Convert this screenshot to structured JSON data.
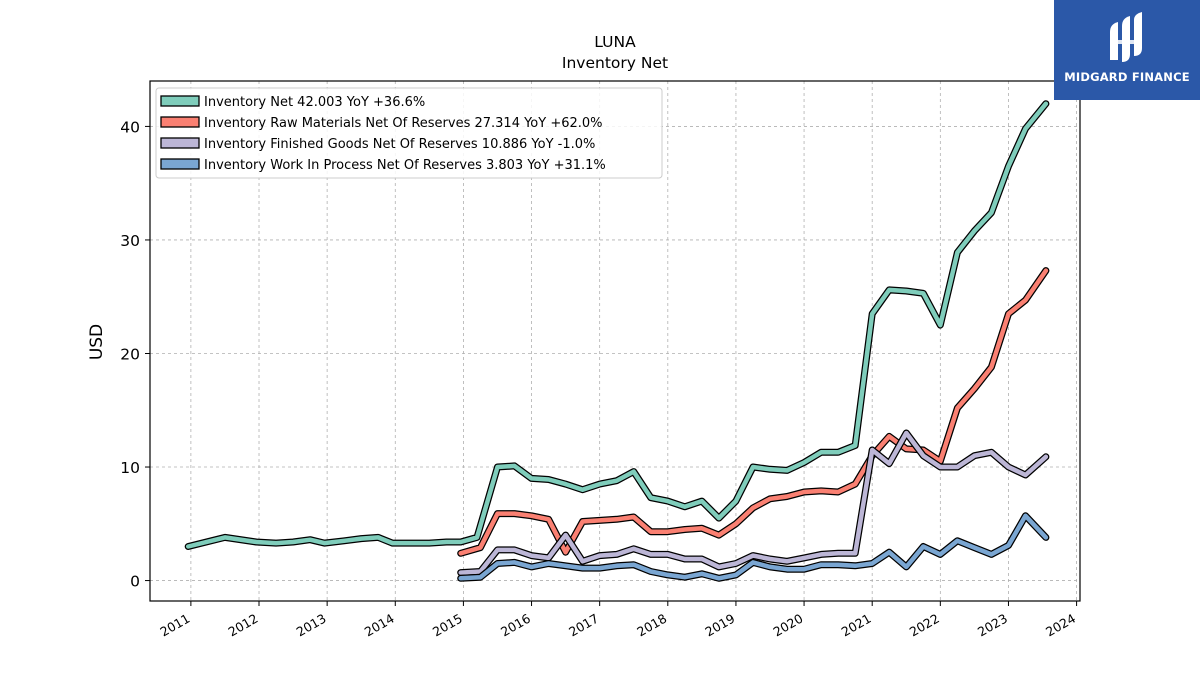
{
  "chart_data": {
    "type": "line",
    "title": "LUNA",
    "subtitle": "Inventory Net",
    "xlabel": "",
    "ylabel": "USD",
    "xlim": [
      2010.4,
      2024.05
    ],
    "ylim": [
      -1.8,
      44
    ],
    "x_ticks": [
      "2011",
      "2012",
      "2013",
      "2014",
      "2015",
      "2016",
      "2017",
      "2018",
      "2019",
      "2020",
      "2021",
      "2022",
      "2023",
      "2024"
    ],
    "y_ticks": [
      "0",
      "10",
      "20",
      "30",
      "40"
    ],
    "grid": true,
    "legend_position": "top-left",
    "series": [
      {
        "name": "Inventory Net",
        "legend_label": "Inventory Net  42.003 YoY +36.6%",
        "color": "#7fcdbb",
        "points": [
          [
            2010.96,
            3.0
          ],
          [
            2011.5,
            3.8
          ],
          [
            2011.96,
            3.4
          ],
          [
            2012.25,
            3.3
          ],
          [
            2012.5,
            3.4
          ],
          [
            2012.75,
            3.6
          ],
          [
            2012.96,
            3.3
          ],
          [
            2013.25,
            3.5
          ],
          [
            2013.5,
            3.7
          ],
          [
            2013.75,
            3.8
          ],
          [
            2013.96,
            3.3
          ],
          [
            2014.25,
            3.3
          ],
          [
            2014.5,
            3.3
          ],
          [
            2014.75,
            3.4
          ],
          [
            2014.96,
            3.4
          ],
          [
            2015.2,
            3.8
          ],
          [
            2015.5,
            10.0
          ],
          [
            2015.75,
            10.1
          ],
          [
            2016.0,
            9.0
          ],
          [
            2016.25,
            8.9
          ],
          [
            2016.5,
            8.5
          ],
          [
            2016.75,
            8.0
          ],
          [
            2017.0,
            8.5
          ],
          [
            2017.25,
            8.8
          ],
          [
            2017.5,
            9.6
          ],
          [
            2017.75,
            7.3
          ],
          [
            2018.0,
            7.0
          ],
          [
            2018.25,
            6.5
          ],
          [
            2018.5,
            7.0
          ],
          [
            2018.75,
            5.5
          ],
          [
            2019.0,
            7.0
          ],
          [
            2019.25,
            10.0
          ],
          [
            2019.5,
            9.8
          ],
          [
            2019.75,
            9.7
          ],
          [
            2020.0,
            10.4
          ],
          [
            2020.25,
            11.3
          ],
          [
            2020.5,
            11.3
          ],
          [
            2020.75,
            11.9
          ],
          [
            2021.0,
            23.5
          ],
          [
            2021.25,
            25.6
          ],
          [
            2021.5,
            25.5
          ],
          [
            2021.75,
            25.3
          ],
          [
            2022.0,
            22.5
          ],
          [
            2022.25,
            28.9
          ],
          [
            2022.5,
            30.8
          ],
          [
            2022.75,
            32.4
          ],
          [
            2023.0,
            36.5
          ],
          [
            2023.25,
            39.8
          ],
          [
            2023.55,
            42.0
          ]
        ]
      },
      {
        "name": "Inventory Raw Materials Net Of Reserves",
        "legend_label": "Inventory Raw Materials Net Of Reserves  27.314 YoY +62.0%",
        "color": "#fa8072",
        "points": [
          [
            2014.96,
            2.4
          ],
          [
            2015.25,
            2.9
          ],
          [
            2015.5,
            5.9
          ],
          [
            2015.75,
            5.9
          ],
          [
            2016.0,
            5.7
          ],
          [
            2016.25,
            5.4
          ],
          [
            2016.5,
            2.5
          ],
          [
            2016.75,
            5.2
          ],
          [
            2017.0,
            5.3
          ],
          [
            2017.25,
            5.4
          ],
          [
            2017.5,
            5.6
          ],
          [
            2017.75,
            4.3
          ],
          [
            2018.0,
            4.3
          ],
          [
            2018.25,
            4.5
          ],
          [
            2018.5,
            4.6
          ],
          [
            2018.75,
            4.0
          ],
          [
            2019.0,
            5.0
          ],
          [
            2019.25,
            6.4
          ],
          [
            2019.5,
            7.2
          ],
          [
            2019.75,
            7.4
          ],
          [
            2020.0,
            7.8
          ],
          [
            2020.25,
            7.9
          ],
          [
            2020.5,
            7.8
          ],
          [
            2020.75,
            8.5
          ],
          [
            2021.0,
            11.0
          ],
          [
            2021.25,
            12.7
          ],
          [
            2021.5,
            11.6
          ],
          [
            2021.75,
            11.5
          ],
          [
            2022.0,
            10.5
          ],
          [
            2022.25,
            15.2
          ],
          [
            2022.5,
            16.9
          ],
          [
            2022.75,
            18.8
          ],
          [
            2023.0,
            23.5
          ],
          [
            2023.25,
            24.7
          ],
          [
            2023.55,
            27.3
          ]
        ]
      },
      {
        "name": "Inventory Finished Goods Net Of Reserves",
        "legend_label": "Inventory Finished Goods Net Of Reserves  10.886 YoY -1.0%",
        "color": "#bcb6d6",
        "points": [
          [
            2014.96,
            0.7
          ],
          [
            2015.25,
            0.8
          ],
          [
            2015.5,
            2.7
          ],
          [
            2015.75,
            2.7
          ],
          [
            2016.0,
            2.2
          ],
          [
            2016.25,
            2.0
          ],
          [
            2016.5,
            4.0
          ],
          [
            2016.75,
            1.7
          ],
          [
            2017.0,
            2.2
          ],
          [
            2017.25,
            2.3
          ],
          [
            2017.5,
            2.8
          ],
          [
            2017.75,
            2.3
          ],
          [
            2018.0,
            2.3
          ],
          [
            2018.25,
            1.9
          ],
          [
            2018.5,
            1.9
          ],
          [
            2018.75,
            1.2
          ],
          [
            2019.0,
            1.5
          ],
          [
            2019.25,
            2.2
          ],
          [
            2019.5,
            1.9
          ],
          [
            2019.75,
            1.7
          ],
          [
            2020.0,
            2.0
          ],
          [
            2020.25,
            2.3
          ],
          [
            2020.5,
            2.4
          ],
          [
            2020.75,
            2.4
          ],
          [
            2021.0,
            11.5
          ],
          [
            2021.25,
            10.3
          ],
          [
            2021.5,
            13.0
          ],
          [
            2021.75,
            11.0
          ],
          [
            2022.0,
            10.0
          ],
          [
            2022.25,
            10.0
          ],
          [
            2022.5,
            11.0
          ],
          [
            2022.75,
            11.3
          ],
          [
            2023.0,
            10.0
          ],
          [
            2023.25,
            9.3
          ],
          [
            2023.55,
            10.9
          ]
        ]
      },
      {
        "name": "Inventory Work In Process Net Of Reserves",
        "legend_label": "Inventory Work In Process Net Of Reserves  3.803 YoY +31.1%",
        "color": "#7aa6d2",
        "points": [
          [
            2014.96,
            0.2
          ],
          [
            2015.25,
            0.3
          ],
          [
            2015.5,
            1.5
          ],
          [
            2015.75,
            1.6
          ],
          [
            2016.0,
            1.2
          ],
          [
            2016.25,
            1.5
          ],
          [
            2016.5,
            1.3
          ],
          [
            2016.75,
            1.1
          ],
          [
            2017.0,
            1.1
          ],
          [
            2017.25,
            1.3
          ],
          [
            2017.5,
            1.4
          ],
          [
            2017.75,
            0.8
          ],
          [
            2018.0,
            0.5
          ],
          [
            2018.25,
            0.3
          ],
          [
            2018.5,
            0.6
          ],
          [
            2018.75,
            0.2
          ],
          [
            2019.0,
            0.5
          ],
          [
            2019.25,
            1.6
          ],
          [
            2019.5,
            1.2
          ],
          [
            2019.75,
            1.0
          ],
          [
            2020.0,
            1.0
          ],
          [
            2020.25,
            1.4
          ],
          [
            2020.5,
            1.4
          ],
          [
            2020.75,
            1.3
          ],
          [
            2021.0,
            1.5
          ],
          [
            2021.25,
            2.5
          ],
          [
            2021.5,
            1.2
          ],
          [
            2021.75,
            3.0
          ],
          [
            2022.0,
            2.3
          ],
          [
            2022.25,
            3.5
          ],
          [
            2022.5,
            2.9
          ],
          [
            2022.75,
            2.3
          ],
          [
            2023.0,
            3.1
          ],
          [
            2023.25,
            5.7
          ],
          [
            2023.55,
            3.8
          ]
        ]
      }
    ]
  },
  "logo": {
    "text": "MIDGARD FINANCE",
    "icon": "midgard-logo-icon",
    "color": "#2b58a8"
  }
}
